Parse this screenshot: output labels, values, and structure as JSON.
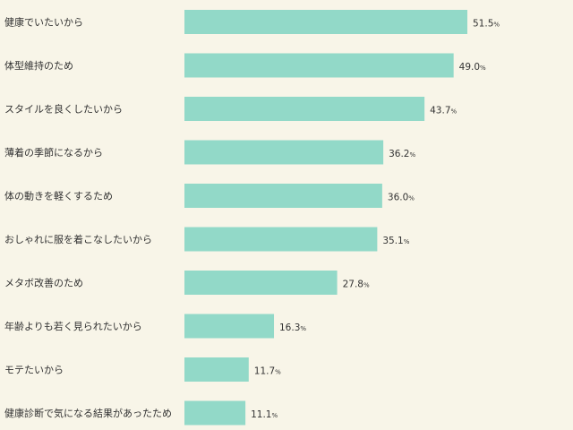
{
  "chart_data": {
    "type": "bar",
    "orientation": "horizontal",
    "title": "",
    "xlabel": "",
    "ylabel": "",
    "xlim": [
      0,
      51.5
    ],
    "grid": false,
    "legend": "none",
    "value_unit": "%",
    "bar_color": "#92d9c8",
    "background_color": "#f8f5e8",
    "categories": [
      "健康でいたいから",
      "体型維持のため",
      "スタイルを良くしたいから",
      "薄着の季節になるから",
      "体の動きを軽くするため",
      "おしゃれに服を着こなしたいから",
      "メタボ改善のため",
      "年齢よりも若く見られたいから",
      "モテたいから",
      "健康診断で気になる結果があったため"
    ],
    "values": [
      51.5,
      49.0,
      43.7,
      36.2,
      36.0,
      35.1,
      27.8,
      16.3,
      11.7,
      11.1
    ],
    "value_labels": [
      "51.5",
      "49.0",
      "43.7",
      "36.2",
      "36.0",
      "35.1",
      "27.8",
      "16.3",
      "11.7",
      "11.1"
    ]
  }
}
